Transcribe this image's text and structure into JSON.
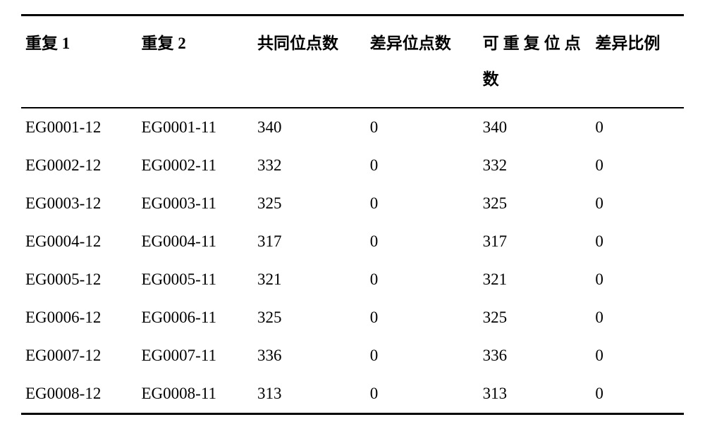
{
  "table": {
    "background_color": "#ffffff",
    "text_color": "#000000",
    "border_color": "#000000",
    "header_fontsize_pt": 17,
    "cell_fontsize_pt": 17,
    "columns": [
      {
        "label_cjk": "重复",
        "label_latin": " 1",
        "width_pct": 17.5,
        "wrap": false
      },
      {
        "label_cjk": "重复",
        "label_latin": " 2",
        "width_pct": 17.5,
        "wrap": false
      },
      {
        "label_cjk": "共同位点数",
        "label_latin": "",
        "width_pct": 17,
        "wrap": false
      },
      {
        "label_cjk": "差异位点数",
        "label_latin": "",
        "width_pct": 17,
        "wrap": false
      },
      {
        "label_cjk": "可重复位点数",
        "label_latin": "",
        "width_pct": 17,
        "wrap": true
      },
      {
        "label_cjk": "差异比例",
        "label_latin": "",
        "width_pct": 14,
        "wrap": false
      }
    ],
    "rows": [
      [
        "EG0001-12",
        "EG0001-11",
        "340",
        "0",
        "340",
        "0"
      ],
      [
        "EG0002-12",
        "EG0002-11",
        "332",
        "0",
        "332",
        "0"
      ],
      [
        "EG0003-12",
        "EG0003-11",
        "325",
        "0",
        "325",
        "0"
      ],
      [
        "EG0004-12",
        "EG0004-11",
        "317",
        "0",
        "317",
        "0"
      ],
      [
        "EG0005-12",
        "EG0005-11",
        "321",
        "0",
        "321",
        "0"
      ],
      [
        "EG0006-12",
        "EG0006-11",
        "325",
        "0",
        "325",
        "0"
      ],
      [
        "EG0007-12",
        "EG0007-11",
        "336",
        "0",
        "336",
        "0"
      ],
      [
        "EG0008-12",
        "EG0008-11",
        "313",
        "0",
        "313",
        "0"
      ]
    ]
  }
}
